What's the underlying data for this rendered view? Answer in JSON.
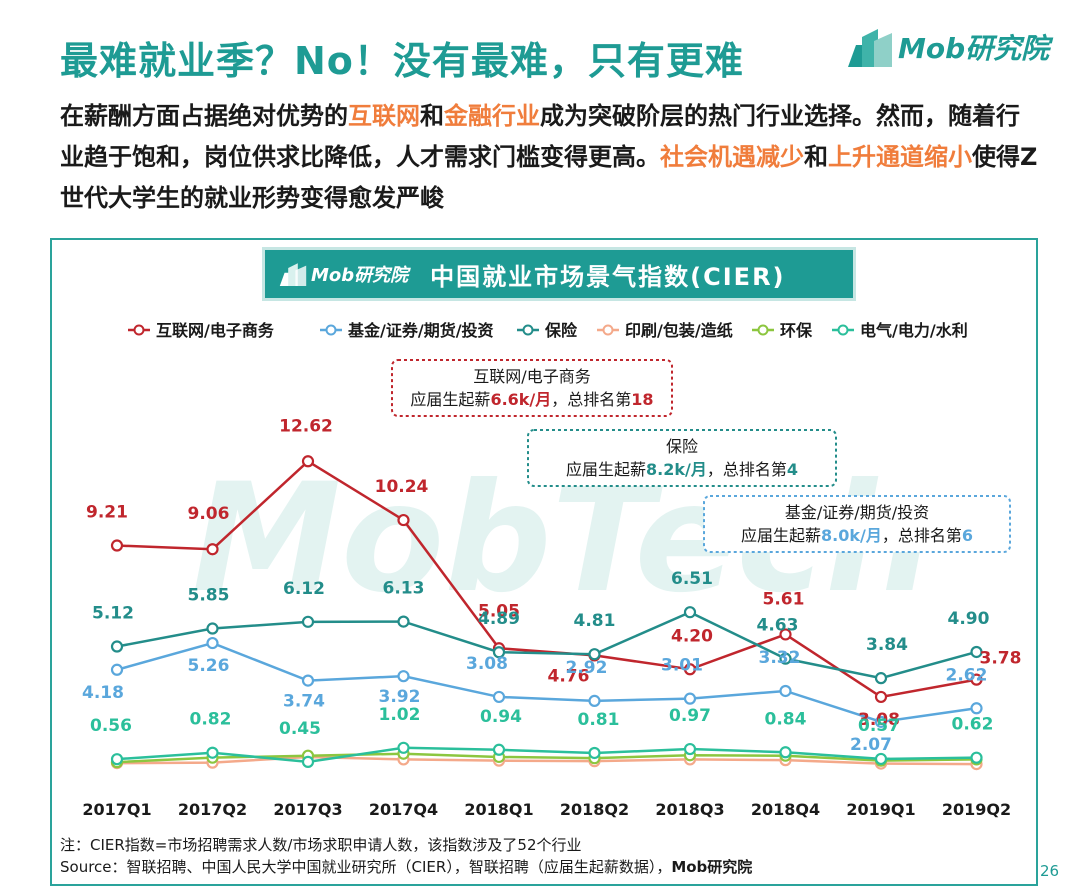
{
  "header": {
    "title": "最难就业季？No！没有最难，只有更难",
    "logo_text": "Mob研究院"
  },
  "intro": {
    "p1": "在薪酬方面占据绝对优势的",
    "h1": "互联网",
    "p2": "和",
    "h2": "金融行业",
    "p3": "成为突破阶层的热门行业选择。然而，随着行业趋于饱和，岗位供求比降低，人才需求门槛变得更高。",
    "h3": "社会机遇减少",
    "p4": "和",
    "h4": "上升通道缩小",
    "p5": "使得Z世代大学生的就业形势变得愈发严峻"
  },
  "banner": {
    "logo_text": "Mob研究院",
    "title": "中国就业市场景气指数(CIER)"
  },
  "watermark": "MobTech",
  "chart_data": {
    "type": "line",
    "title": "中国就业市场景气指数(CIER)",
    "categories": [
      "2017Q1",
      "2017Q2",
      "2017Q3",
      "2017Q4",
      "2018Q1",
      "2018Q2",
      "2018Q3",
      "2018Q4",
      "2019Q1",
      "2019Q2"
    ],
    "ylim": [
      0,
      13
    ],
    "series": [
      {
        "name": "互联网/电子商务",
        "color": "#c0262d",
        "values": [
          9.21,
          9.06,
          12.62,
          10.24,
          5.05,
          4.76,
          4.2,
          5.61,
          3.08,
          3.78
        ],
        "labels": [
          "9.21",
          "9.06",
          "12.62",
          "10.24",
          "5.05",
          "4.76",
          "4.20",
          "5.61",
          "3.08",
          "3.78"
        ]
      },
      {
        "name": "基金/证券/期货/投资",
        "color": "#5aa7dc",
        "values": [
          4.18,
          5.26,
          3.74,
          3.92,
          3.08,
          2.92,
          3.01,
          3.32,
          2.07,
          2.62
        ],
        "labels": [
          "4.18",
          "5.26",
          "3.74",
          "3.92",
          "3.08",
          "2.92",
          "3.01",
          "3.32",
          "2.07",
          "2.62"
        ]
      },
      {
        "name": "保险",
        "color": "#238d8a",
        "values": [
          5.12,
          5.85,
          6.12,
          6.13,
          4.89,
          4.81,
          6.51,
          4.63,
          3.84,
          4.9
        ],
        "labels": [
          "5.12",
          "5.85",
          "6.12",
          "6.13",
          "4.89",
          "4.81",
          "6.51",
          "4.63",
          "3.84",
          "4.90"
        ]
      },
      {
        "name": "印刷/包装/造纸",
        "color": "#f4a98a",
        "values": [
          0.4,
          0.42,
          0.65,
          0.55,
          0.5,
          0.48,
          0.55,
          0.52,
          0.38,
          0.36
        ],
        "labels": []
      },
      {
        "name": "环保",
        "color": "#8cc63f",
        "values": [
          0.44,
          0.62,
          0.7,
          0.78,
          0.65,
          0.6,
          0.72,
          0.7,
          0.5,
          0.55
        ],
        "labels": []
      },
      {
        "name": "电气/电力/水利",
        "color": "#2bbf9b",
        "values": [
          0.56,
          0.82,
          0.45,
          1.02,
          0.94,
          0.81,
          0.97,
          0.84,
          0.57,
          0.62
        ],
        "labels": [
          "0.56",
          "0.82",
          "0.45",
          "1.02",
          "0.94",
          "0.81",
          "0.97",
          "0.84",
          "0.57",
          "0.62"
        ]
      }
    ],
    "callouts": [
      {
        "color": "#c0262d",
        "line1": "互联网/电子商务",
        "line2_pre": "应届生起薪",
        "line2_val": "6.6k/月",
        "line2_mid": "，总排名第",
        "line2_rank": "18"
      },
      {
        "color": "#238d8a",
        "line1": "保险",
        "line2_pre": "应届生起薪",
        "line2_val": "8.2k/月",
        "line2_mid": "，总排名第",
        "line2_rank": "4"
      },
      {
        "color": "#5aa7dc",
        "line1": "基金/证券/期货/投资",
        "line2_pre": "应届生起薪",
        "line2_val": "8.0k/月",
        "line2_mid": "，总排名第",
        "line2_rank": "6"
      }
    ]
  },
  "footnote": {
    "note": "注：CIER指数=市场招聘需求人数/市场求职申请人数，该指数涉及了52个行业",
    "source": "Source：智联招聘、中国人民大学中国就业研究所（CIER），智联招聘（应届生起薪数据），",
    "source_org": "Mob研究院"
  },
  "page_number": "26"
}
